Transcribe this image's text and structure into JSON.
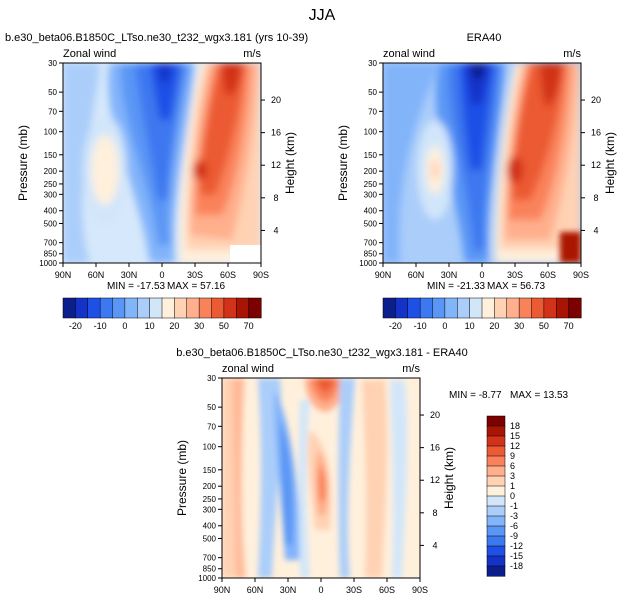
{
  "figure_title": "JJA",
  "chart_data": [
    {
      "type": "heatmap",
      "title": "b.e30_beta06.B1850C_LTso.ne30_t232_wgx3.181 (yrs 10-39)",
      "left_string": "Zonal wind",
      "right_string": "m/s",
      "ylabel": "Pressure (mb)",
      "ylabel_right": "Height (km)",
      "x_ticks": [
        "90N",
        "60N",
        "30N",
        "0",
        "30S",
        "60S",
        "90S"
      ],
      "y_ticks": [
        "30",
        "50",
        "70",
        "100",
        "150",
        "200",
        "250",
        "300",
        "400",
        "500",
        "700",
        "850",
        "1000"
      ],
      "height_ticks": [
        "20",
        "16",
        "12",
        "8",
        "4"
      ],
      "min_label": "MIN = -17.53",
      "max_label": "MAX = 57.16",
      "x_range": [
        90,
        -90
      ],
      "y_range_mb": [
        1000,
        30
      ],
      "levels": [
        -20,
        -15,
        -10,
        -5,
        0,
        5,
        10,
        15,
        20,
        25,
        30,
        40,
        50,
        60,
        70
      ],
      "features": [
        {
          "lat": 5,
          "p": 30,
          "value": -17
        },
        {
          "lat": 60,
          "p": 200,
          "value": 14
        },
        {
          "lat": -38,
          "p": 200,
          "value": 40
        },
        {
          "lat": -55,
          "p": 35,
          "value": 57
        }
      ]
    },
    {
      "type": "heatmap",
      "title": "ERA40",
      "left_string": "zonal wind",
      "right_string": "m/s",
      "ylabel": "Pressure (mb)",
      "ylabel_right": "Height (km)",
      "x_ticks": [
        "90N",
        "60N",
        "30N",
        "0",
        "30S",
        "60S",
        "90S"
      ],
      "y_ticks": [
        "30",
        "50",
        "70",
        "100",
        "150",
        "200",
        "250",
        "300",
        "400",
        "500",
        "700",
        "850",
        "1000"
      ],
      "height_ticks": [
        "20",
        "16",
        "12",
        "8",
        "4"
      ],
      "min_label": "MIN = -21.33",
      "max_label": "MAX = 56.73",
      "x_range": [
        90,
        -90
      ],
      "y_range_mb": [
        1000,
        30
      ],
      "levels": [
        -20,
        -15,
        -10,
        -5,
        0,
        5,
        10,
        15,
        20,
        25,
        30,
        40,
        50,
        60,
        70
      ]
    },
    {
      "type": "heatmap",
      "title": "b.e30_beta06.B1850C_LTso.ne30_t232_wgx3.181 - ERA40",
      "left_string": "zonal wind",
      "right_string": "m/s",
      "ylabel": "Pressure (mb)",
      "ylabel_right": "Height (km)",
      "x_ticks": [
        "90N",
        "60N",
        "30N",
        "0",
        "30S",
        "60S",
        "90S"
      ],
      "y_ticks": [
        "30",
        "50",
        "70",
        "100",
        "150",
        "200",
        "250",
        "300",
        "400",
        "500",
        "700",
        "850",
        "1000"
      ],
      "height_ticks": [
        "20",
        "16",
        "12",
        "8",
        "4"
      ],
      "min_label": "MIN = -8.77",
      "max_label": "MAX = 13.53",
      "x_range": [
        90,
        -90
      ],
      "y_range_mb": [
        1000,
        30
      ],
      "levels": [
        -18,
        -15,
        -12,
        -9,
        -6,
        -3,
        -1,
        0,
        1,
        3,
        6,
        9,
        12,
        15,
        18
      ]
    }
  ],
  "colorbar_main": {
    "labels": [
      "-20",
      "-10",
      "0",
      "10",
      "20",
      "30",
      "50",
      "70"
    ],
    "colors": [
      "#0a1e8c",
      "#1432c8",
      "#1e50e6",
      "#3c78f0",
      "#5a96f5",
      "#82b4fa",
      "#aacdfa",
      "#d2e6fa",
      "#fff0dc",
      "#ffd2b4",
      "#ffaf8c",
      "#fa825a",
      "#eb5a32",
      "#d23219",
      "#aa1405",
      "#7d0000"
    ]
  },
  "colorbar_diff": {
    "labels": [
      "18",
      "15",
      "12",
      "9",
      "6",
      "3",
      "1",
      "0",
      "-1",
      "-3",
      "-6",
      "-9",
      "-12",
      "-15",
      "-18"
    ],
    "colors": [
      "#7d0000",
      "#aa1405",
      "#d23219",
      "#eb5a32",
      "#fa825a",
      "#ffaf8c",
      "#ffd2b4",
      "#fff0dc",
      "#d2e6fa",
      "#aacdfa",
      "#82b4fa",
      "#5a96f5",
      "#3c78f0",
      "#1e50e6",
      "#1432c8",
      "#0a1e8c"
    ]
  }
}
